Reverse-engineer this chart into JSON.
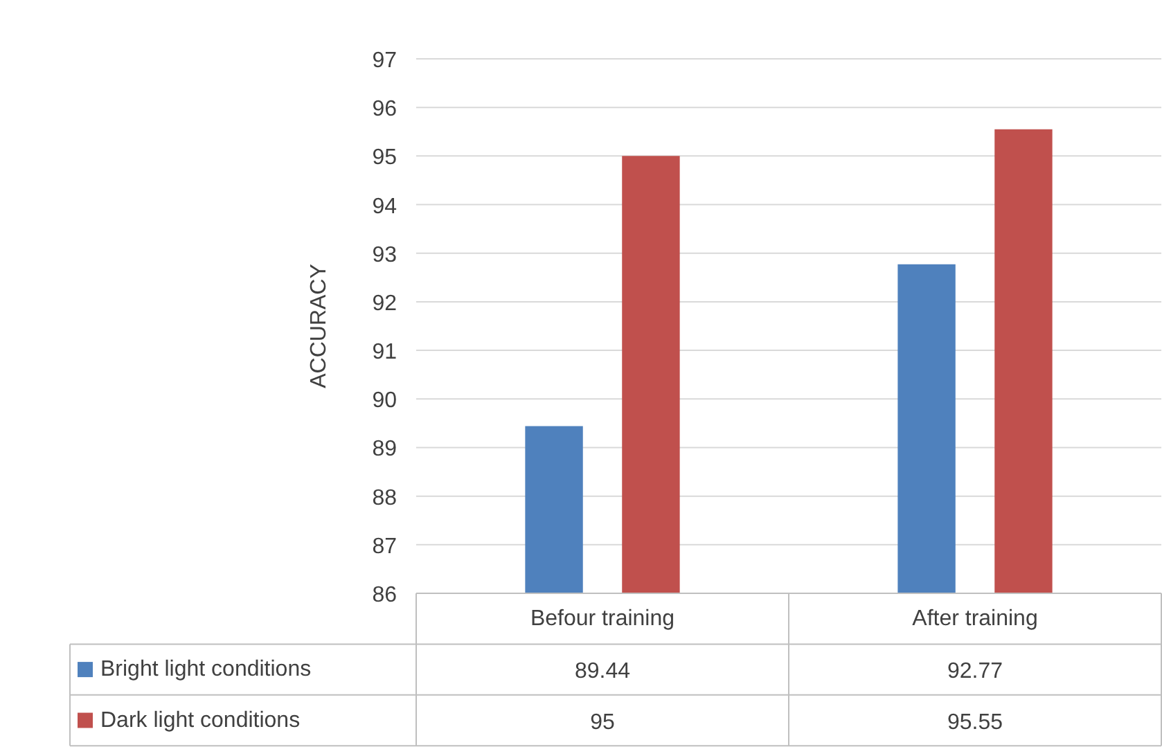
{
  "chart_data": {
    "type": "bar",
    "ylabel": "ACCURACY",
    "categories": [
      "Befour training",
      "After training"
    ],
    "series": [
      {
        "name": "Bright light conditions",
        "color": "#4f81bd",
        "values": [
          89.44,
          92.77
        ]
      },
      {
        "name": "Dark light conditions",
        "color": "#c0504d",
        "values": [
          95,
          95.55
        ]
      }
    ],
    "ylim": [
      86,
      97
    ],
    "yticks": [
      86,
      87,
      88,
      89,
      90,
      91,
      92,
      93,
      94,
      95,
      96,
      97
    ],
    "grid": "y",
    "legend": "bottom",
    "data_labels": true
  }
}
